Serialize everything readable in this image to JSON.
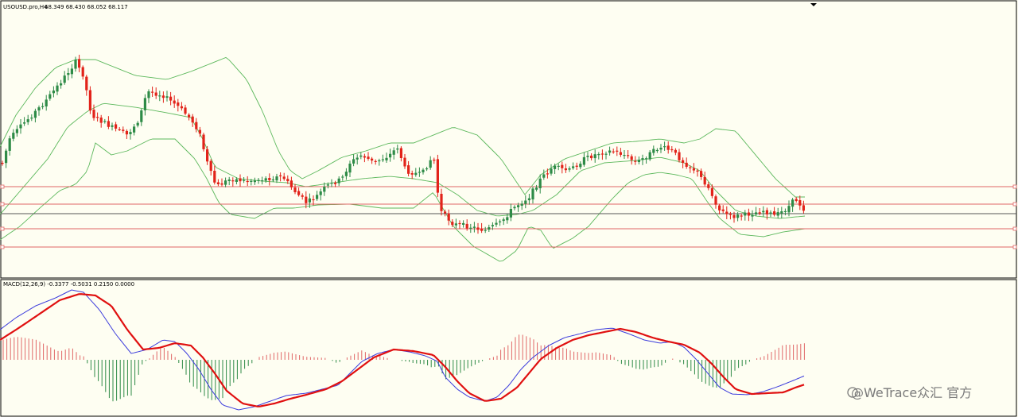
{
  "window": {
    "symbol_line": "USOUSD.pro,H4",
    "ohlc_line": "68.349 68.430 68.052 68.117",
    "macd_line": "MACD(12,26,9) -0.3377 -0.5031 0.2150 0.0000",
    "watermark": "@WeTrace众汇 官方"
  },
  "colors": {
    "background": "#fefef2",
    "bull_candle": "#2e8b47",
    "bear_candle": "#e2231a",
    "bollinger": "#5cb85c",
    "level_lines": "#e06666",
    "current_line": "#555555",
    "macd_line": "#3c3cdc",
    "signal_line": "#e01010",
    "hist_pos": "#e06666",
    "hist_neg": "#2e8b47"
  },
  "chart_data": [
    {
      "type": "candlestick",
      "title": "USOUSD.pro,H4",
      "last_bar": {
        "open": 68.349,
        "high": 68.43,
        "low": 68.052,
        "close": 68.117
      },
      "indicators": [
        "Bollinger Bands"
      ],
      "horizontal_levels": [
        69.1,
        68.6,
        67.7,
        67.2
      ],
      "current_price": 68.117,
      "ylim": [
        66.3,
        73.8
      ],
      "grid": false
    },
    {
      "type": "macd",
      "title": "MACD(12,26,9)",
      "params": [
        12,
        26,
        9
      ],
      "values": {
        "macd": -0.3377,
        "signal": -0.5031,
        "histogram": 0.215,
        "extra": 0.0
      },
      "ylim": [
        -1.6,
        1.9
      ],
      "grid": false
    }
  ]
}
